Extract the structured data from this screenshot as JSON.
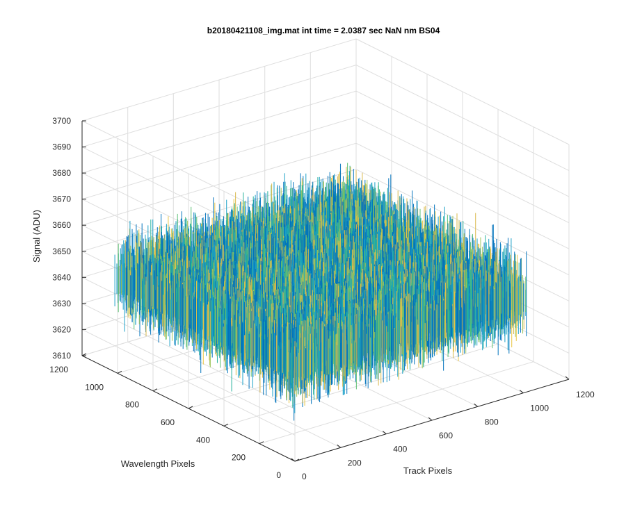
{
  "chart_data": {
    "type": "surface",
    "title": "b20180421108_img.mat int time = 2.0387 sec  NaN nm BS04",
    "xlabel": "Track Pixels",
    "ylabel": "Wavelength Pixels",
    "zlabel": "Signal (ADU)",
    "xlim": [
      0,
      1200
    ],
    "ylim": [
      0,
      1200
    ],
    "zlim": [
      3610,
      3700
    ],
    "xticks": [
      "0",
      "200",
      "400",
      "600",
      "800",
      "1000",
      "1200"
    ],
    "yticks": [
      "0",
      "200",
      "400",
      "600",
      "800",
      "1000",
      "1200"
    ],
    "zticks": [
      "3610",
      "3620",
      "3630",
      "3640",
      "3650",
      "3660",
      "3670",
      "3680",
      "3690",
      "3700"
    ],
    "data_extent": {
      "x": [
        0,
        1024
      ],
      "y": [
        0,
        1024
      ]
    },
    "signal_mean": 3648,
    "signal_range_approx": [
      3605,
      3690
    ],
    "grid": true,
    "colormap": [
      "#0072bd",
      "#1aa0c8",
      "#22b09a",
      "#5cbf72",
      "#9cc45a",
      "#d8b84a",
      "#e8c542"
    ],
    "axis_color": "#262626",
    "grid_color": "#dedede"
  }
}
